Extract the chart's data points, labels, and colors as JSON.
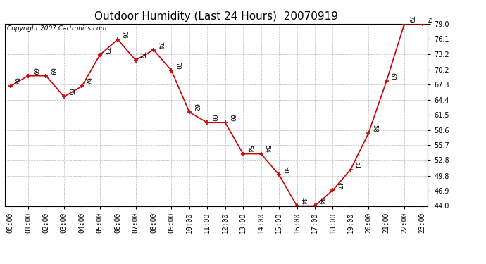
{
  "title": "Outdoor Humidity (Last 24 Hours)  20070919",
  "copyright": "Copyright 2007 Cartronics.com",
  "x_labels": [
    "00:00",
    "01:00",
    "02:00",
    "03:00",
    "04:00",
    "05:00",
    "06:00",
    "07:00",
    "08:00",
    "09:00",
    "10:00",
    "11:00",
    "12:00",
    "13:00",
    "14:00",
    "15:00",
    "16:00",
    "17:00",
    "18:00",
    "19:00",
    "20:00",
    "21:00",
    "22:00",
    "23:00"
  ],
  "x_values": [
    0,
    1,
    2,
    3,
    4,
    5,
    6,
    7,
    8,
    9,
    10,
    11,
    12,
    13,
    14,
    15,
    16,
    17,
    18,
    19,
    20,
    21,
    22,
    23
  ],
  "y_values": [
    67,
    69,
    69,
    65,
    67,
    73,
    76,
    72,
    74,
    70,
    62,
    60,
    60,
    54,
    54,
    50,
    44,
    44,
    47,
    51,
    58,
    68,
    79,
    79
  ],
  "point_labels": [
    "67",
    "69",
    "69",
    "65",
    "67",
    "73",
    "76",
    "72",
    "74",
    "70",
    "62",
    "60",
    "60",
    "54",
    "54",
    "50",
    "44",
    "44",
    "47",
    "51",
    "58",
    "68",
    "79",
    "79"
  ],
  "y_ticks": [
    44.0,
    46.9,
    49.8,
    52.8,
    55.7,
    58.6,
    61.5,
    64.4,
    67.3,
    70.2,
    73.2,
    76.1,
    79.0
  ],
  "ylim_min": 44.0,
  "ylim_max": 79.0,
  "line_color": "#cc0000",
  "marker_color": "#cc0000",
  "bg_color": "#ffffff",
  "grid_color": "#bbbbbb",
  "title_fontsize": 11,
  "label_fontsize": 6.5,
  "tick_fontsize": 7,
  "copyright_fontsize": 6.5
}
